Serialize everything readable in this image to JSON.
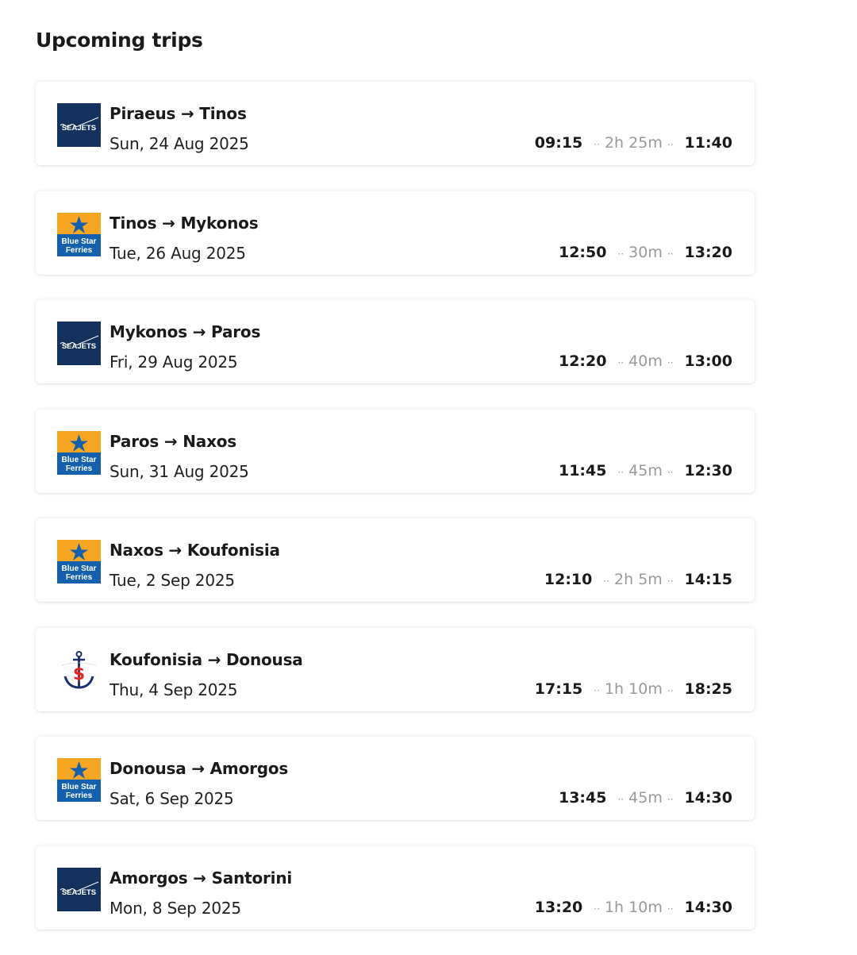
{
  "title": "Upcoming trips",
  "trips": [
    {
      "route_from": "Piraeus",
      "route_to": "Tinos",
      "date": "Sun, 24 Aug 2025",
      "depart": "09:15",
      "duration": "2h 25m",
      "arrive": "11:40",
      "operator": "seajets"
    },
    {
      "route_from": "Tinos",
      "route_to": "Mykonos",
      "date": "Tue, 26 Aug 2025",
      "depart": "12:50",
      "duration": "30m",
      "arrive": "13:20",
      "operator": "bluestar"
    },
    {
      "route_from": "Mykonos",
      "route_to": "Paros",
      "date": "Fri, 29 Aug 2025",
      "depart": "12:20",
      "duration": "40m",
      "arrive": "13:00",
      "operator": "seajets"
    },
    {
      "route_from": "Paros",
      "route_to": "Naxos",
      "date": "Sun, 31 Aug 2025",
      "depart": "11:45",
      "duration": "45m",
      "arrive": "12:30",
      "operator": "bluestar"
    },
    {
      "route_from": "Naxos",
      "route_to": "Koufonisia",
      "date": "Tue, 2 Sep 2025",
      "depart": "12:10",
      "duration": "2h 5m",
      "arrive": "14:15",
      "operator": "bluestar"
    },
    {
      "route_from": "Koufonisia",
      "route_to": "Donousa",
      "date": "Thu, 4 Sep 2025",
      "depart": "17:15",
      "duration": "1h 10m",
      "arrive": "18:25",
      "operator": "anchor"
    },
    {
      "route_from": "Donousa",
      "route_to": "Amorgos",
      "date": "Sat, 6 Sep 2025",
      "depart": "13:45",
      "duration": "45m",
      "arrive": "14:30",
      "operator": "bluestar"
    },
    {
      "route_from": "Amorgos",
      "route_to": "Santorini",
      "date": "Mon, 8 Sep 2025",
      "depart": "13:20",
      "duration": "1h 10m",
      "arrive": "14:30",
      "operator": "seajets"
    }
  ],
  "logos": {
    "seajets": "SEAJETS",
    "bluestar_line1": "Blue Star",
    "bluestar_line2": "Ferries"
  },
  "arrow": "→",
  "colors": {
    "seajets_bg": "#14305c",
    "bluestar_top": "#f6a623",
    "bluestar_bottom": "#1560ad",
    "anchor": "#1d2f6f",
    "anchor_dollar": "#e02525"
  }
}
